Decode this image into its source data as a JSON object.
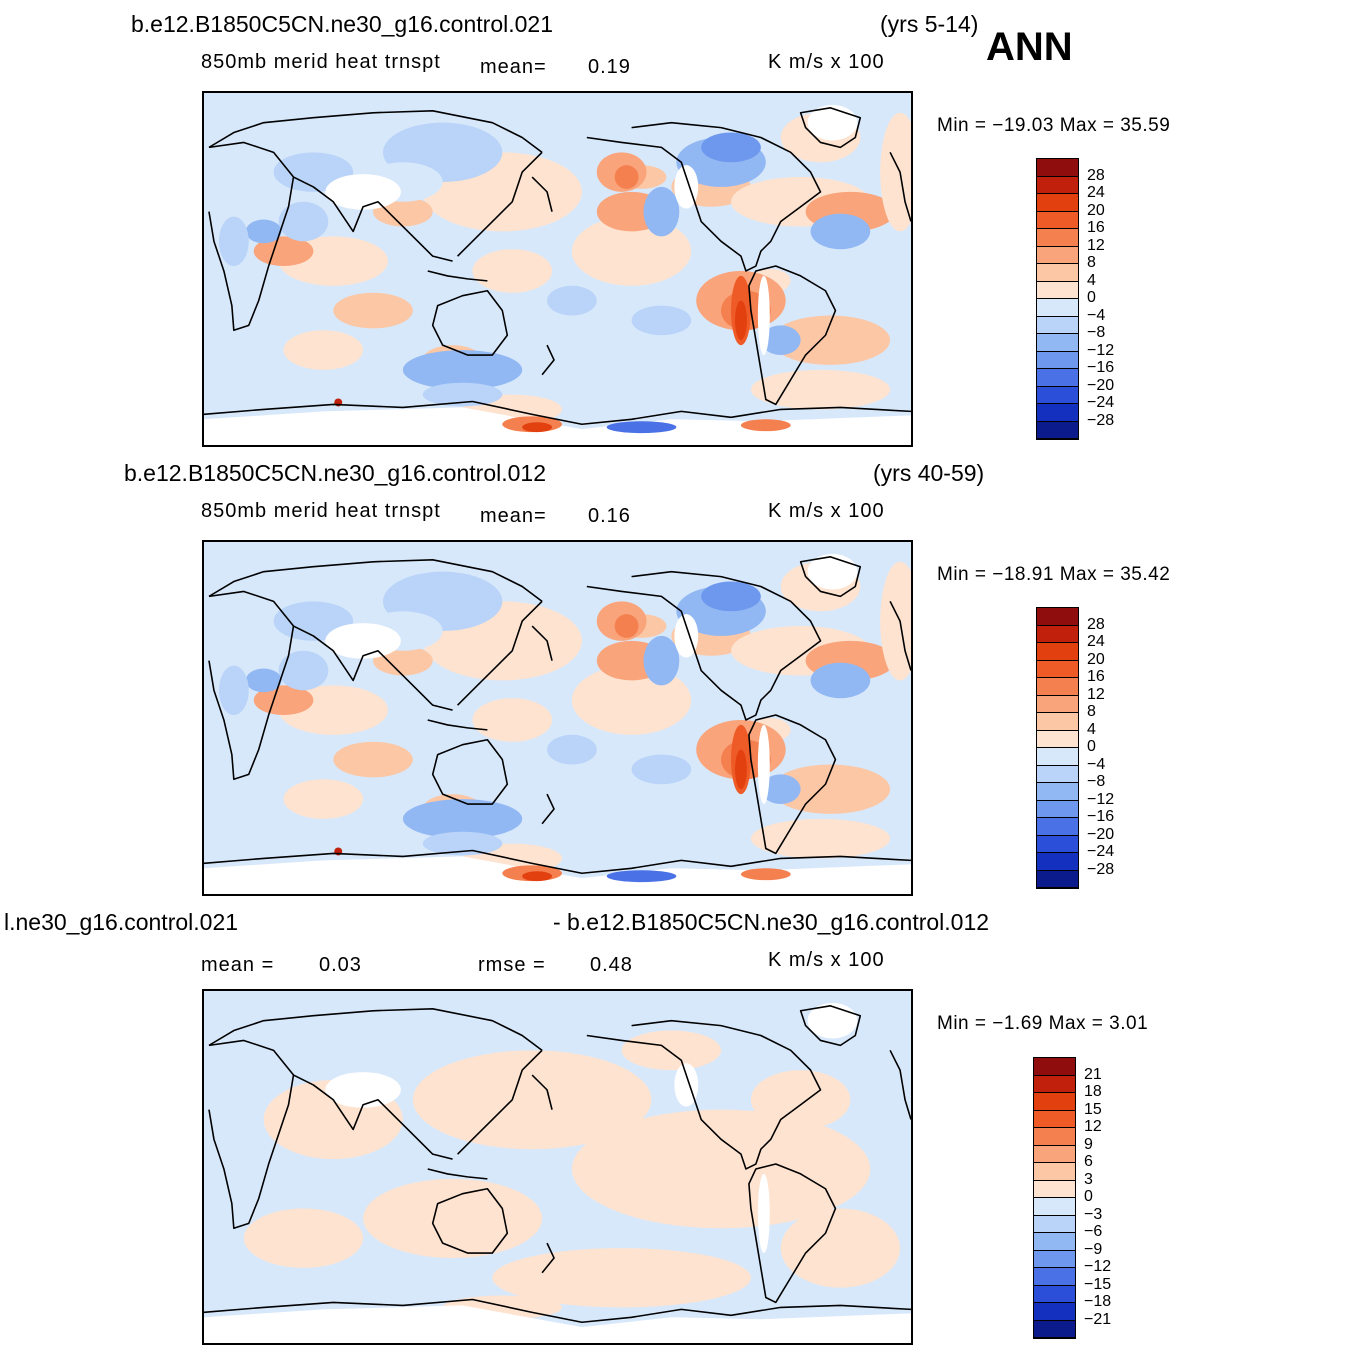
{
  "season": "ANN",
  "units": "K m/s x 100",
  "colors": {
    "pos": [
      "#fde3d0",
      "#fbc7a5",
      "#f9a47a",
      "#f47f4f",
      "#ee5b26",
      "#e34010",
      "#c0200c",
      "#8f0d0c"
    ],
    "neg": [
      "#d8e8fb",
      "#b9d4f8",
      "#92b8f4",
      "#6e98ee",
      "#4a72e6",
      "#2b4fd9",
      "#1330bf",
      "#0b1b8c"
    ],
    "land_missing": "#ffffff"
  },
  "panels": [
    {
      "case": "b.e12.B1850C5CN.ne30_g16.control.021",
      "years": "(yrs 5-14)",
      "variable": "850mb  merid  heat  trnspt",
      "mean_label": "mean=",
      "mean": "0.19",
      "minmax": "Min  =  −19.03  Max  =     35.59",
      "levels": [
        "28",
        "24",
        "20",
        "16",
        "12",
        "8",
        "4",
        "0",
        "−4",
        "−8",
        "−12",
        "−16",
        "−20",
        "−24",
        "−28"
      ]
    },
    {
      "case": "b.e12.B1850C5CN.ne30_g16.control.012",
      "years": "(yrs 40-59)",
      "variable": "850mb  merid  heat  trnspt",
      "mean_label": "mean=",
      "mean": "0.16",
      "minmax": "Min  =  −18.91  Max  =     35.42",
      "levels": [
        "28",
        "24",
        "20",
        "16",
        "12",
        "8",
        "4",
        "0",
        "−4",
        "−8",
        "−12",
        "−16",
        "−20",
        "−24",
        "−28"
      ]
    },
    {
      "case_left": "l.ne30_g16.control.021",
      "case_right": "- b.e12.B1850C5CN.ne30_g16.control.012",
      "mean_label": "mean  =",
      "mean": "0.03",
      "rmse_label": "rmse  =",
      "rmse": "0.48",
      "minmax": "Min  =    −1.69  Max  =       3.01",
      "levels": [
        "21",
        "18",
        "15",
        "12",
        "9",
        "6",
        "3",
        "0",
        "−3",
        "−6",
        "−9",
        "−12",
        "−15",
        "−18",
        "−21"
      ]
    }
  ]
}
